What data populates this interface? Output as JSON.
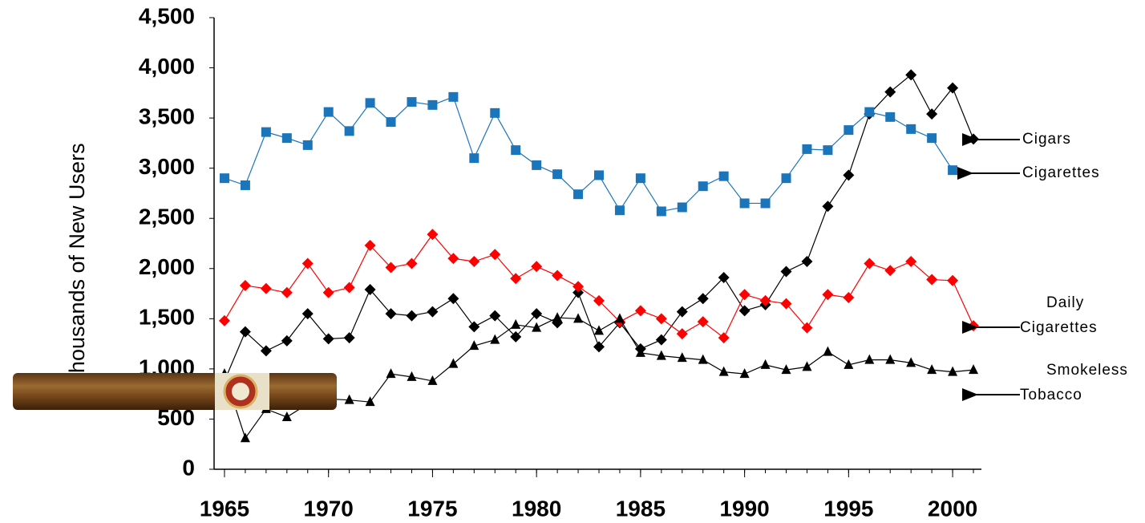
{
  "chart_data": {
    "type": "line",
    "y_label": "Thousands of New Users",
    "x": [
      1965,
      1966,
      1967,
      1968,
      1969,
      1970,
      1971,
      1972,
      1973,
      1974,
      1975,
      1976,
      1977,
      1978,
      1979,
      1980,
      1981,
      1982,
      1983,
      1984,
      1985,
      1986,
      1987,
      1988,
      1989,
      1990,
      1991,
      1992,
      1993,
      1994,
      1995,
      1996,
      1997,
      1998,
      1999,
      2000,
      2001
    ],
    "series": [
      {
        "name": "Cigars",
        "color": "#000000",
        "marker": "diamond",
        "values": [
          880,
          1370,
          1180,
          1280,
          1550,
          1300,
          1310,
          1790,
          1550,
          1530,
          1570,
          1700,
          1420,
          1530,
          1320,
          1550,
          1460,
          1760,
          1220,
          1460,
          1200,
          1290,
          1570,
          1700,
          1910,
          1580,
          1640,
          1970,
          2070,
          2620,
          2930,
          3540,
          3760,
          3930,
          3540,
          3800,
          3290
        ]
      },
      {
        "name": "Cigarettes",
        "color": "#1b75bb",
        "marker": "square",
        "values": [
          2900,
          2830,
          3360,
          3300,
          3230,
          3560,
          3370,
          3650,
          3460,
          3660,
          3630,
          3710,
          3100,
          3550,
          3180,
          3030,
          2940,
          2740,
          2930,
          2580,
          2900,
          2570,
          2610,
          2820,
          2920,
          2650,
          2650,
          2900,
          3190,
          3180,
          3380,
          3560,
          3510,
          3390,
          3300,
          2980,
          null
        ]
      },
      {
        "name": "Daily Cigarettes",
        "color": "#ff0000",
        "marker": "diamond",
        "values": [
          1480,
          1830,
          1800,
          1760,
          2050,
          1760,
          1810,
          2230,
          2010,
          2050,
          2340,
          2100,
          2070,
          2140,
          1900,
          2020,
          1930,
          1820,
          1680,
          1470,
          1580,
          1500,
          1350,
          1470,
          1310,
          1740,
          1680,
          1650,
          1410,
          1740,
          1710,
          2050,
          1980,
          2070,
          1890,
          1880,
          1430
        ]
      },
      {
        "name": "Smokeless Tobacco",
        "color": "#000000",
        "marker": "triangle",
        "values": [
          950,
          310,
          600,
          520,
          650,
          700,
          690,
          670,
          950,
          920,
          880,
          1050,
          1230,
          1290,
          1440,
          1410,
          1510,
          1500,
          1380,
          1500,
          1160,
          1130,
          1110,
          1090,
          970,
          950,
          1040,
          990,
          1020,
          1170,
          1040,
          1090,
          1090,
          1060,
          990,
          970,
          990
        ]
      }
    ],
    "xlim": [
      1964.5,
      2001.5
    ],
    "xticks": [
      1965,
      1970,
      1975,
      1980,
      1985,
      1990,
      1995,
      2000
    ],
    "ylim": [
      0,
      4500
    ],
    "yticks": [
      0,
      500,
      {
        "value": 1000,
        "label": "1,000"
      },
      {
        "value": 1500,
        "label": "1,500"
      },
      {
        "value": 2000,
        "label": "2,000"
      },
      {
        "value": 2500,
        "label": "2,500"
      },
      {
        "value": 3000,
        "label": "3,000"
      },
      {
        "value": 3500,
        "label": "3,500"
      },
      {
        "value": 4000,
        "label": "4,000"
      },
      {
        "value": 4500,
        "label": "4,500"
      }
    ],
    "grid": false
  }
}
